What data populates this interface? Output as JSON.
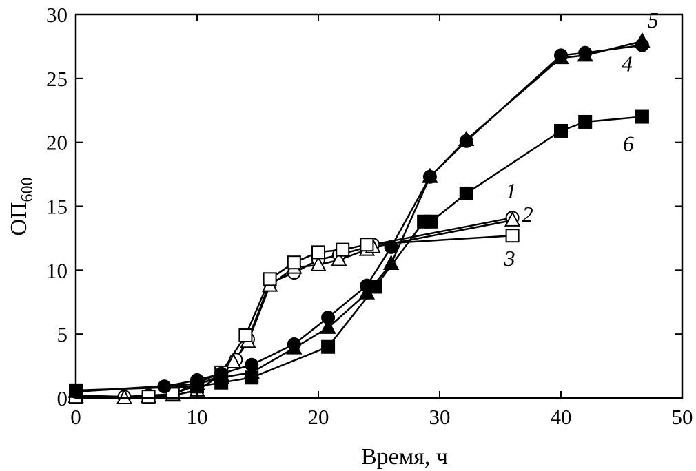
{
  "chart_data": {
    "type": "line",
    "xlabel": "Время, ч",
    "ylabel": {
      "main": "ОП",
      "sub": "600"
    },
    "xlim": [
      0,
      50
    ],
    "ylim": [
      0,
      30
    ],
    "x_ticks": [
      0,
      10,
      20,
      30,
      40,
      50
    ],
    "y_ticks": [
      0,
      5,
      10,
      15,
      20,
      25,
      30
    ],
    "grid": false,
    "series": [
      {
        "name": "1",
        "marker": "circle-open",
        "points": [
          [
            0,
            0.2
          ],
          [
            4,
            0.1
          ],
          [
            6,
            0.2
          ],
          [
            8,
            0.3
          ],
          [
            10,
            1.0
          ],
          [
            12,
            1.8
          ],
          [
            13.2,
            3.0
          ],
          [
            14.2,
            4.6
          ],
          [
            16,
            9.0
          ],
          [
            18,
            9.8
          ],
          [
            20,
            10.8
          ],
          [
            21.7,
            11.2
          ],
          [
            24,
            11.8
          ],
          [
            24.5,
            12.0
          ],
          [
            36,
            14.1
          ]
        ]
      },
      {
        "name": "2",
        "marker": "triangle-open",
        "points": [
          [
            0,
            0.1
          ],
          [
            4,
            0.0
          ],
          [
            6,
            0.1
          ],
          [
            8,
            0.2
          ],
          [
            10,
            0.6
          ],
          [
            12,
            1.8
          ],
          [
            13,
            2.8
          ],
          [
            14.2,
            4.4
          ],
          [
            16,
            8.8
          ],
          [
            18,
            10.2
          ],
          [
            20,
            10.4
          ],
          [
            21.7,
            10.8
          ],
          [
            24,
            11.6
          ],
          [
            24.5,
            11.8
          ],
          [
            36,
            13.9
          ]
        ]
      },
      {
        "name": "3",
        "marker": "square-open",
        "points": [
          [
            0,
            0.1
          ],
          [
            6,
            0.1
          ],
          [
            8,
            0.3
          ],
          [
            12,
            2.0
          ],
          [
            14,
            4.9
          ],
          [
            16,
            9.3
          ],
          [
            18,
            10.6
          ],
          [
            20,
            11.4
          ],
          [
            22,
            11.6
          ],
          [
            24,
            12.0
          ],
          [
            36,
            12.7
          ]
        ]
      },
      {
        "name": "4",
        "marker": "circle-filled",
        "points": [
          [
            0,
            0.5
          ],
          [
            7.3,
            0.9
          ],
          [
            10,
            1.4
          ],
          [
            12,
            1.9
          ],
          [
            14.5,
            2.6
          ],
          [
            18,
            4.2
          ],
          [
            20.8,
            6.3
          ],
          [
            24,
            8.8
          ],
          [
            26,
            11.8
          ],
          [
            29.2,
            17.3
          ],
          [
            32.2,
            20.1
          ],
          [
            40,
            26.8
          ],
          [
            42,
            27.0
          ],
          [
            46.7,
            27.6
          ]
        ]
      },
      {
        "name": "5",
        "marker": "triangle-filled",
        "points": [
          [
            0,
            0.5
          ],
          [
            10,
            1.1
          ],
          [
            12,
            1.6
          ],
          [
            14.5,
            2.0
          ],
          [
            18,
            3.9
          ],
          [
            20.8,
            5.5
          ],
          [
            24,
            8.2
          ],
          [
            26,
            10.5
          ],
          [
            29.2,
            17.3
          ],
          [
            32.2,
            20.2
          ],
          [
            40,
            26.6
          ],
          [
            42,
            26.8
          ],
          [
            46.7,
            27.9
          ]
        ]
      },
      {
        "name": "6",
        "marker": "square-filled",
        "points": [
          [
            0,
            0.6
          ],
          [
            10,
            0.9
          ],
          [
            12,
            1.2
          ],
          [
            14.5,
            1.6
          ],
          [
            20.8,
            4.0
          ],
          [
            24.7,
            8.7
          ],
          [
            28.7,
            13.8
          ],
          [
            29.3,
            13.8
          ],
          [
            32.2,
            16.0
          ],
          [
            40,
            20.9
          ],
          [
            42,
            21.6
          ],
          [
            46.7,
            22.0
          ]
        ]
      }
    ]
  }
}
